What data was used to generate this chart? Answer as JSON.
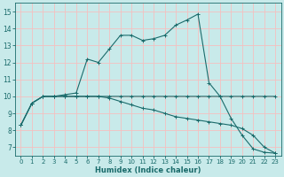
{
  "xlabel": "Humidex (Indice chaleur)",
  "bg_color": "#c8eaea",
  "grid_color": "#f5c0c0",
  "line_color": "#1a6b6b",
  "xlim": [
    -0.5,
    23.5
  ],
  "ylim": [
    6.5,
    15.5
  ],
  "xticks": [
    0,
    1,
    2,
    3,
    4,
    5,
    6,
    7,
    8,
    9,
    10,
    11,
    12,
    13,
    14,
    15,
    16,
    17,
    18,
    19,
    20,
    21,
    22,
    23
  ],
  "yticks": [
    7,
    8,
    9,
    10,
    11,
    12,
    13,
    14,
    15
  ],
  "curve_top_x": [
    0,
    1,
    2,
    3,
    4,
    5,
    6,
    7,
    8,
    9,
    10,
    11,
    12,
    13,
    14,
    15,
    16,
    17,
    18,
    19,
    20,
    21,
    22,
    23
  ],
  "curve_top_y": [
    8.3,
    9.6,
    10.0,
    10.0,
    10.1,
    10.2,
    12.2,
    12.0,
    12.8,
    13.6,
    13.6,
    13.3,
    13.4,
    13.6,
    14.2,
    14.5,
    14.85,
    10.8,
    10.0,
    8.7,
    7.7,
    6.9,
    6.7,
    6.65
  ],
  "curve_mid_x": [
    0,
    1,
    2,
    3,
    4,
    5,
    6,
    7,
    8,
    9,
    10,
    11,
    12,
    13,
    14,
    15,
    16,
    17,
    18,
    19,
    20,
    21,
    22,
    23
  ],
  "curve_mid_y": [
    8.3,
    9.6,
    10.0,
    10.0,
    10.0,
    10.0,
    10.0,
    10.0,
    10.0,
    10.0,
    10.0,
    10.0,
    10.0,
    10.0,
    10.0,
    10.0,
    10.0,
    10.0,
    10.0,
    10.0,
    10.0,
    10.0,
    10.0,
    10.0
  ],
  "curve_bot_x": [
    0,
    1,
    2,
    3,
    4,
    5,
    6,
    7,
    8,
    9,
    10,
    11,
    12,
    13,
    14,
    15,
    16,
    17,
    18,
    19,
    20,
    21,
    22,
    23
  ],
  "curve_bot_y": [
    8.3,
    9.6,
    10.0,
    10.0,
    10.0,
    10.0,
    10.0,
    10.0,
    9.9,
    9.7,
    9.5,
    9.3,
    9.2,
    9.0,
    8.8,
    8.7,
    8.6,
    8.5,
    8.4,
    8.3,
    8.1,
    7.7,
    7.0,
    6.65
  ]
}
